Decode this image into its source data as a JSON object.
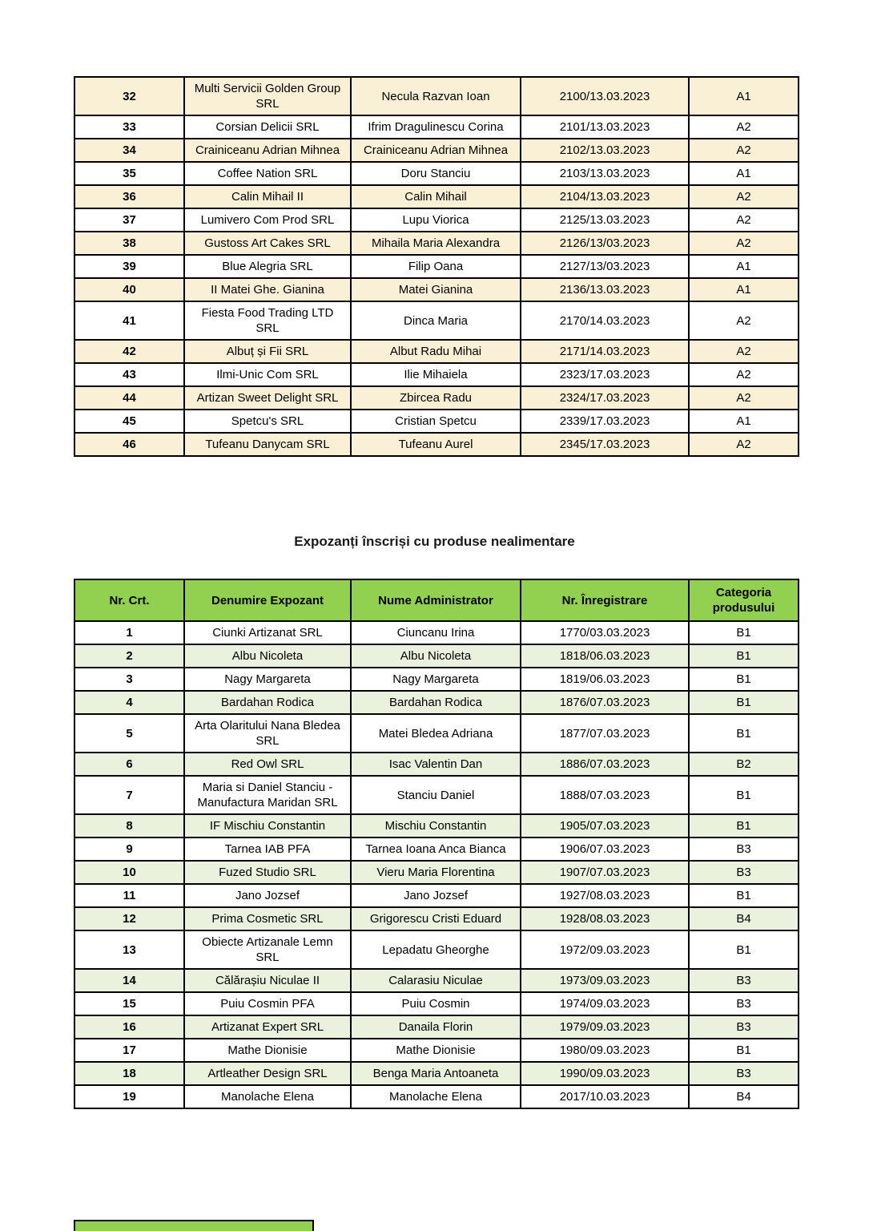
{
  "colors": {
    "header_green": "#92D050",
    "row_cream": "#FAF0D6",
    "row_pale_green": "#EAF1DD",
    "border": "#000000",
    "page_background": "#FFFFFF"
  },
  "columns_order": [
    "nr",
    "expozant",
    "administrator",
    "inregistrare",
    "categoria"
  ],
  "section_title": "Expozanți înscriși cu produse nealimentare",
  "table_food": {
    "rows": [
      {
        "nr": "32",
        "expozant": "Multi Servicii Golden Group SRL",
        "administrator": "Necula Razvan Ioan",
        "inregistrare": "2100/13.03.2023",
        "categoria": "A1"
      },
      {
        "nr": "33",
        "expozant": "Corsian Delicii SRL",
        "administrator": "Ifrim Dragulinescu Corina",
        "inregistrare": "2101/13.03.2023",
        "categoria": "A2"
      },
      {
        "nr": "34",
        "expozant": "Crainiceanu Adrian Mihnea",
        "administrator": "Crainiceanu Adrian Mihnea",
        "inregistrare": "2102/13.03.2023",
        "categoria": "A2"
      },
      {
        "nr": "35",
        "expozant": "Coffee Nation SRL",
        "administrator": "Doru Stanciu",
        "inregistrare": "2103/13.03.2023",
        "categoria": "A1"
      },
      {
        "nr": "36",
        "expozant": "Calin Mihail II",
        "administrator": "Calin Mihail",
        "inregistrare": "2104/13.03.2023",
        "categoria": "A2"
      },
      {
        "nr": "37",
        "expozant": "Lumivero Com Prod SRL",
        "administrator": "Lupu Viorica",
        "inregistrare": "2125/13.03.2023",
        "categoria": "A2"
      },
      {
        "nr": "38",
        "expozant": "Gustoss Art Cakes SRL",
        "administrator": "Mihaila Maria Alexandra",
        "inregistrare": "2126/13/03.2023",
        "categoria": "A2"
      },
      {
        "nr": "39",
        "expozant": "Blue Alegria SRL",
        "administrator": "Filip Oana",
        "inregistrare": "2127/13/03.2023",
        "categoria": "A1"
      },
      {
        "nr": "40",
        "expozant": "II Matei Ghe. Gianina",
        "administrator": "Matei Gianina",
        "inregistrare": "2136/13.03.2023",
        "categoria": "A1"
      },
      {
        "nr": "41",
        "expozant": "Fiesta Food Trading LTD SRL",
        "administrator": "Dinca Maria",
        "inregistrare": "2170/14.03.2023",
        "categoria": "A2"
      },
      {
        "nr": "42",
        "expozant": "Albuț și Fii SRL",
        "administrator": "Albut Radu Mihai",
        "inregistrare": "2171/14.03.2023",
        "categoria": "A2"
      },
      {
        "nr": "43",
        "expozant": "Ilmi-Unic Com SRL",
        "administrator": "Ilie Mihaiela",
        "inregistrare": "2323/17.03.2023",
        "categoria": "A2"
      },
      {
        "nr": "44",
        "expozant": "Artizan Sweet Delight SRL",
        "administrator": "Zbircea Radu",
        "inregistrare": "2324/17.03.2023",
        "categoria": "A2"
      },
      {
        "nr": "45",
        "expozant": "Spetcu's SRL",
        "administrator": "Cristian Spetcu",
        "inregistrare": "2339/17.03.2023",
        "categoria": "A1"
      },
      {
        "nr": "46",
        "expozant": "Tufeanu Danycam SRL",
        "administrator": "Tufeanu Aurel",
        "inregistrare": "2345/17.03.2023",
        "categoria": "A2"
      }
    ]
  },
  "table_nonfood": {
    "headers": [
      "Nr. Crt.",
      "Denumire Expozant",
      "Nume Administrator",
      "Nr. Înregistrare",
      "Categoria produsului"
    ],
    "rows": [
      {
        "nr": "1",
        "expozant": "Ciunki Artizanat SRL",
        "administrator": "Ciuncanu Irina",
        "inregistrare": "1770/03.03.2023",
        "categoria": "B1"
      },
      {
        "nr": "2",
        "expozant": "Albu Nicoleta",
        "administrator": "Albu Nicoleta",
        "inregistrare": "1818/06.03.2023",
        "categoria": "B1"
      },
      {
        "nr": "3",
        "expozant": "Nagy Margareta",
        "administrator": "Nagy Margareta",
        "inregistrare": "1819/06.03.2023",
        "categoria": "B1"
      },
      {
        "nr": "4",
        "expozant": "Bardahan Rodica",
        "administrator": "Bardahan Rodica",
        "inregistrare": "1876/07.03.2023",
        "categoria": "B1"
      },
      {
        "nr": "5",
        "expozant": "Arta Olaritului Nana Bledea SRL",
        "administrator": "Matei Bledea Adriana",
        "inregistrare": "1877/07.03.2023",
        "categoria": "B1"
      },
      {
        "nr": "6",
        "expozant": "Red Owl SRL",
        "administrator": "Isac Valentin Dan",
        "inregistrare": "1886/07.03.2023",
        "categoria": "B2"
      },
      {
        "nr": "7",
        "expozant": "Maria si Daniel Stanciu - Manufactura Maridan SRL",
        "administrator": "Stanciu Daniel",
        "inregistrare": "1888/07.03.2023",
        "categoria": "B1"
      },
      {
        "nr": "8",
        "expozant": "IF Mischiu Constantin",
        "administrator": "Mischiu Constantin",
        "inregistrare": "1905/07.03.2023",
        "categoria": "B1"
      },
      {
        "nr": "9",
        "expozant": "Tarnea IAB PFA",
        "administrator": "Tarnea Ioana Anca Bianca",
        "inregistrare": "1906/07.03.2023",
        "categoria": "B3"
      },
      {
        "nr": "10",
        "expozant": "Fuzed Studio SRL",
        "administrator": "Vieru Maria Florentina",
        "inregistrare": "1907/07.03.2023",
        "categoria": "B3"
      },
      {
        "nr": "11",
        "expozant": "Jano Jozsef",
        "administrator": "Jano Jozsef",
        "inregistrare": "1927/08.03.2023",
        "categoria": "B1"
      },
      {
        "nr": "12",
        "expozant": "Prima Cosmetic SRL",
        "administrator": "Grigorescu Cristi Eduard",
        "inregistrare": "1928/08.03.2023",
        "categoria": "B4"
      },
      {
        "nr": "13",
        "expozant": "Obiecte Artizanale Lemn SRL",
        "administrator": "Lepadatu Gheorghe",
        "inregistrare": "1972/09.03.2023",
        "categoria": "B1"
      },
      {
        "nr": "14",
        "expozant": "Călărașiu Niculae II",
        "administrator": "Calarasiu Niculae",
        "inregistrare": "1973/09.03.2023",
        "categoria": "B3"
      },
      {
        "nr": "15",
        "expozant": "Puiu Cosmin PFA",
        "administrator": "Puiu Cosmin",
        "inregistrare": "1974/09.03.2023",
        "categoria": "B3"
      },
      {
        "nr": "16",
        "expozant": "Artizanat Expert SRL",
        "administrator": "Danaila Florin",
        "inregistrare": "1979/09.03.2023",
        "categoria": "B3"
      },
      {
        "nr": "17",
        "expozant": "Mathe Dionisie",
        "administrator": "Mathe Dionisie",
        "inregistrare": "1980/09.03.2023",
        "categoria": "B1"
      },
      {
        "nr": "18",
        "expozant": "Artleather Design SRL",
        "administrator": "Benga Maria Antoaneta",
        "inregistrare": "1990/09.03.2023",
        "categoria": "B3"
      },
      {
        "nr": "19",
        "expozant": "Manolache Elena",
        "administrator": "Manolache Elena",
        "inregistrare": "2017/10.03.2023",
        "categoria": "B4"
      }
    ]
  }
}
